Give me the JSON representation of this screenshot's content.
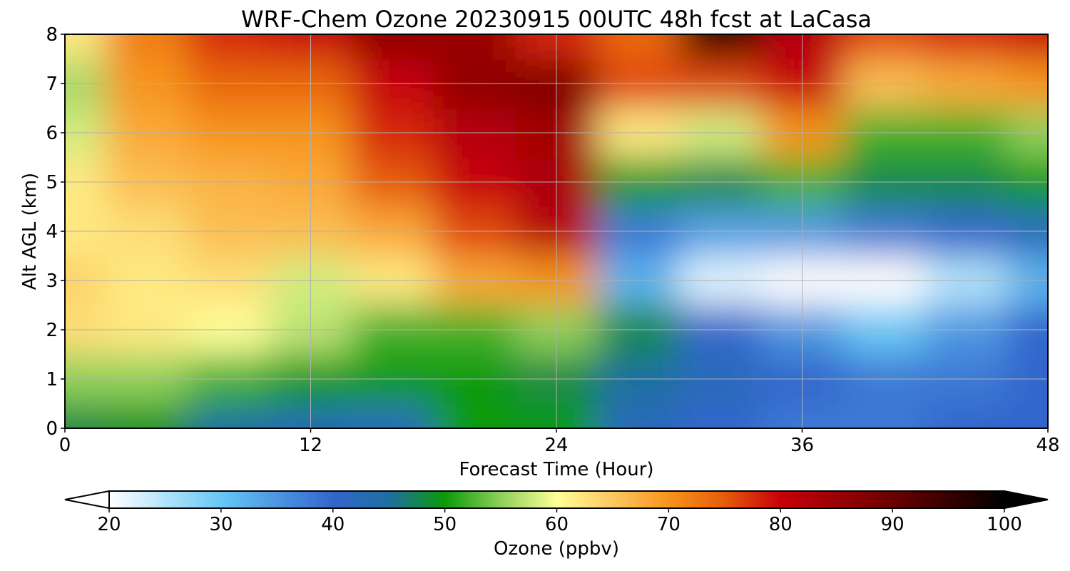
{
  "chart_data": {
    "type": "heatmap",
    "title": "WRF-Chem Ozone  20230915 00UTC 48h fcst at LaCasa",
    "xlabel": "Forecast Time (Hour)",
    "ylabel": "Alt AGL (km)",
    "xlim": [
      0,
      48
    ],
    "ylim": [
      0,
      8
    ],
    "xticks": [
      0,
      12,
      24,
      36,
      48
    ],
    "yticks": [
      0,
      1,
      2,
      3,
      4,
      5,
      6,
      7,
      8
    ],
    "grid": true,
    "colorbar": {
      "label": "Ozone  (ppbv)",
      "min": 20,
      "max": 100,
      "ticks": [
        20,
        30,
        40,
        50,
        60,
        70,
        80,
        90,
        100
      ],
      "extend": "both",
      "stops": [
        {
          "value": 20,
          "color": "#ffffff"
        },
        {
          "value": 30,
          "color": "#66c7f5"
        },
        {
          "value": 40,
          "color": "#3366cc"
        },
        {
          "value": 45,
          "color": "#1f6fa0"
        },
        {
          "value": 50,
          "color": "#0a9a0a"
        },
        {
          "value": 55,
          "color": "#8fd05a"
        },
        {
          "value": 60,
          "color": "#ffff99"
        },
        {
          "value": 65,
          "color": "#fcc860"
        },
        {
          "value": 70,
          "color": "#f7941d"
        },
        {
          "value": 75,
          "color": "#e65c0a"
        },
        {
          "value": 80,
          "color": "#c8000a"
        },
        {
          "value": 90,
          "color": "#6b0000"
        },
        {
          "value": 100,
          "color": "#000000"
        }
      ]
    },
    "x": [
      0,
      4,
      8,
      12,
      16,
      20,
      24,
      28,
      32,
      36,
      40,
      44,
      48
    ],
    "y": [
      0,
      1,
      2,
      3,
      4,
      5,
      6,
      7,
      8
    ],
    "z": [
      [
        48,
        49,
        45,
        43,
        42,
        50,
        50,
        42,
        40,
        38,
        38,
        40,
        40
      ],
      [
        55,
        55,
        52,
        50,
        50,
        50,
        48,
        45,
        42,
        40,
        38,
        38,
        40
      ],
      [
        63,
        62,
        60,
        57,
        52,
        52,
        55,
        48,
        40,
        35,
        30,
        35,
        40
      ],
      [
        64,
        62,
        63,
        58,
        62,
        68,
        70,
        32,
        22,
        20,
        20,
        25,
        32
      ],
      [
        62,
        63,
        66,
        66,
        68,
        76,
        82,
        38,
        34,
        35,
        38,
        40,
        42
      ],
      [
        62,
        66,
        67,
        68,
        75,
        80,
        83,
        50,
        48,
        52,
        48,
        48,
        50
      ],
      [
        58,
        68,
        70,
        70,
        78,
        82,
        84,
        62,
        58,
        70,
        52,
        52,
        55
      ],
      [
        56,
        70,
        74,
        74,
        80,
        86,
        88,
        76,
        76,
        80,
        66,
        68,
        70
      ],
      [
        62,
        72,
        78,
        80,
        86,
        85,
        78,
        74,
        95,
        82,
        76,
        78,
        80
      ]
    ]
  }
}
